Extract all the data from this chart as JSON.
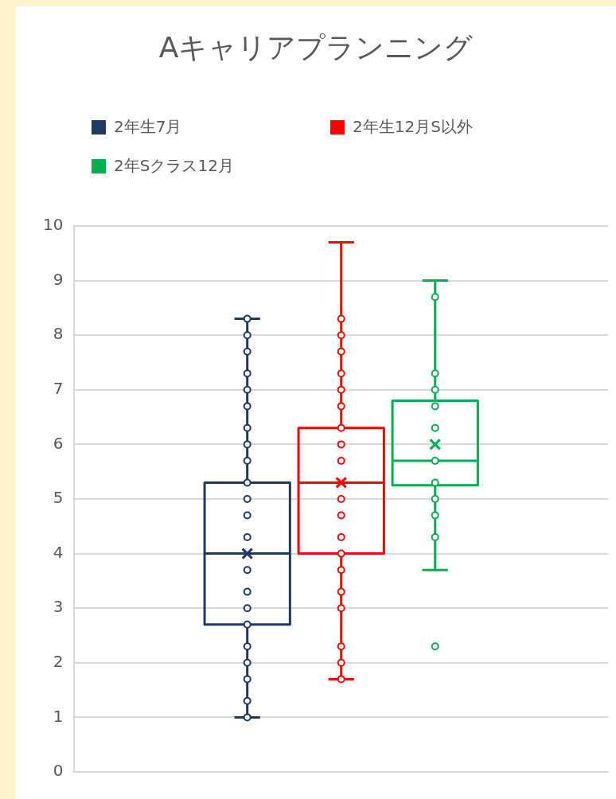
{
  "chart_data": {
    "type": "box",
    "title": "Aキャリアプランニング",
    "categories": [
      null
    ],
    "ylim": [
      0,
      10
    ],
    "yticks": [
      0,
      1,
      2,
      3,
      4,
      5,
      6,
      7,
      8,
      9,
      10
    ],
    "grid": "y",
    "legend": "top left",
    "marker": "circle",
    "series": [
      {
        "name": "2年生7月",
        "color": "#203864",
        "boxes": [
          {
            "low": 1.0,
            "q1": 2.7,
            "median": 4.0,
            "q3": 5.3,
            "high": 8.3,
            "mean": 4.0
          }
        ]
      },
      {
        "name": "2年生12月S以外",
        "color": "#ff0000",
        "boxes": [
          {
            "low": 1.7,
            "q1": 4.0,
            "median": 5.3,
            "q3": 6.3,
            "high": 9.7,
            "mean": 5.3
          }
        ]
      },
      {
        "name": "2年Sクラス12月",
        "color": "#00b050",
        "boxes": [
          {
            "low": 3.7,
            "q1": 5.25,
            "median": 5.7,
            "q3": 6.8,
            "high": 9.0,
            "mean": 6.0,
            "outliers": [
              2.3
            ]
          }
        ]
      },
      {
        "type": "scatter",
        "color": "#203864",
        "x": [
          null,
          null,
          null,
          null,
          null,
          null,
          null,
          null,
          null,
          null,
          null,
          null,
          null,
          null,
          null,
          null,
          null,
          null,
          null,
          null,
          null,
          null
        ],
        "values": [
          8.3,
          8.0,
          7.7,
          7.3,
          7.0,
          6.7,
          6.3,
          6.0,
          5.7,
          5.3,
          5.0,
          4.7,
          4.3,
          3.7,
          3.3,
          3.0,
          2.7,
          2.3,
          2.0,
          1.7,
          1.3,
          1.0
        ]
      },
      {
        "type": "scatter",
        "color": "#ff0000",
        "x": [
          null,
          null,
          null,
          null,
          null,
          null,
          null,
          null,
          null,
          null,
          null,
          null,
          null,
          null,
          null,
          null,
          null,
          null,
          null
        ],
        "values": [
          8.3,
          8.0,
          7.7,
          7.3,
          7.0,
          6.7,
          6.3,
          6.0,
          5.7,
          5.0,
          4.7,
          4.3,
          4.0,
          3.7,
          3.3,
          3.0,
          2.3,
          2.0,
          1.7
        ]
      },
      {
        "type": "scatter",
        "color": "#00b050",
        "x": [
          null,
          null,
          null,
          null,
          null,
          null,
          null,
          null,
          null,
          null
        ],
        "values": [
          8.7,
          7.3,
          7.0,
          6.7,
          6.3,
          5.7,
          5.3,
          5.0,
          4.7,
          4.3
        ]
      }
    ]
  }
}
